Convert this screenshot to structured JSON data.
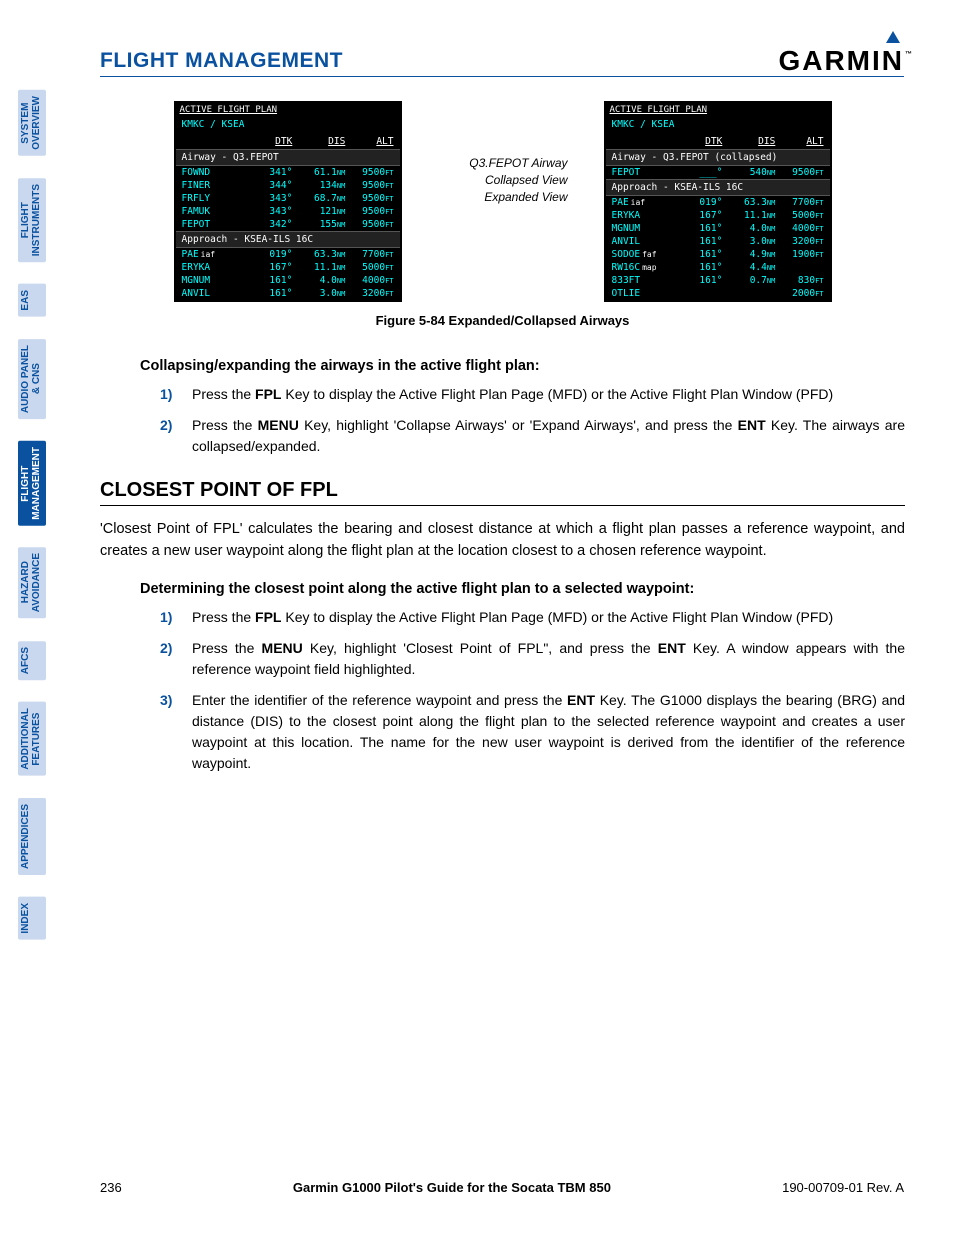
{
  "header": {
    "title": "FLIGHT MANAGEMENT",
    "logo": "GARMIN"
  },
  "sidebar": {
    "tabs": [
      {
        "label": "SYSTEM\nOVERVIEW",
        "active": false
      },
      {
        "label": "FLIGHT\nINSTRUMENTS",
        "active": false
      },
      {
        "label": "EAS",
        "active": false
      },
      {
        "label": "AUDIO PANEL\n& CNS",
        "active": false
      },
      {
        "label": "FLIGHT\nMANAGEMENT",
        "active": true
      },
      {
        "label": "HAZARD\nAVOIDANCE",
        "active": false
      },
      {
        "label": "AFCS",
        "active": false
      },
      {
        "label": "ADDITIONAL\nFEATURES",
        "active": false
      },
      {
        "label": "APPENDICES",
        "active": false
      },
      {
        "label": "INDEX",
        "active": false
      }
    ]
  },
  "figure": {
    "caption": "Figure 5-84  Expanded/Collapsed Airways",
    "center": {
      "l1": "Q3.FEPOT Airway",
      "l2": "Collapsed View",
      "l3": "Expanded View"
    },
    "left": {
      "title": "ACTIVE FLIGHT PLAN",
      "route": "KMKC / KSEA",
      "cols": [
        "DTK",
        "DIS",
        "ALT"
      ],
      "sections": [
        {
          "h": "Airway - Q3.FEPOT",
          "rows": [
            {
              "n": "FOWND",
              "dtk": "341°",
              "dis": "61.1NM",
              "alt": "9500FT"
            },
            {
              "n": "FINER",
              "dtk": "344°",
              "dis": "134NM",
              "alt": "9500FT"
            },
            {
              "n": "FRFLY",
              "dtk": "343°",
              "dis": "68.7NM",
              "alt": "9500FT"
            },
            {
              "n": "FAMUK",
              "dtk": "343°",
              "dis": "121NM",
              "alt": "9500FT"
            },
            {
              "n": "FEPOT",
              "dtk": "342°",
              "dis": "155NM",
              "alt": "9500FT"
            }
          ]
        },
        {
          "h": "Approach - KSEA-ILS 16C",
          "rows": [
            {
              "n": "PAE",
              "sub": "iaf",
              "dtk": "019°",
              "dis": "63.3NM",
              "alt": "7700FT"
            },
            {
              "n": "ERYKA",
              "dtk": "167°",
              "dis": "11.1NM",
              "alt": "5000FT"
            },
            {
              "n": "MGNUM",
              "dtk": "161°",
              "dis": "4.0NM",
              "alt": "4000FT"
            },
            {
              "n": "ANVIL",
              "dtk": "161°",
              "dis": "3.0NM",
              "alt": "3200FT"
            }
          ]
        }
      ]
    },
    "right": {
      "title": "ACTIVE FLIGHT PLAN",
      "route": "KMKC / KSEA",
      "cols": [
        "DTK",
        "DIS",
        "ALT"
      ],
      "sections": [
        {
          "h": "Airway - Q3.FEPOT (collapsed)",
          "rows": [
            {
              "n": "FEPOT",
              "dtk": "___°",
              "dis": "540NM",
              "alt": "9500FT"
            }
          ]
        },
        {
          "h": "Approach - KSEA-ILS 16C",
          "rows": [
            {
              "n": "PAE",
              "sub": "iaf",
              "dtk": "019°",
              "dis": "63.3NM",
              "alt": "7700FT"
            },
            {
              "n": "ERYKA",
              "dtk": "167°",
              "dis": "11.1NM",
              "alt": "5000FT"
            },
            {
              "n": "MGNUM",
              "dtk": "161°",
              "dis": "4.0NM",
              "alt": "4000FT"
            },
            {
              "n": "ANVIL",
              "dtk": "161°",
              "dis": "3.0NM",
              "alt": "3200FT"
            },
            {
              "n": "SODOE",
              "sub": "faf",
              "dtk": "161°",
              "dis": "4.9NM",
              "alt": "1900FT"
            },
            {
              "n": "RW16C",
              "sub": "map",
              "dtk": "161°",
              "dis": "4.4NM",
              "alt": ""
            },
            {
              "n": "833FT",
              "dtk": "161°",
              "dis": "0.7NM",
              "alt": "830FT"
            },
            {
              "n": "OTLIE",
              "dtk": "",
              "dis": "",
              "alt": "2000FT"
            }
          ]
        }
      ]
    }
  },
  "proc1": {
    "head": "Collapsing/expanding the airways in the active flight plan:",
    "steps": [
      "Press the <b>FPL</b> Key to display the Active Flight Plan Page (MFD) or the Active Flight Plan Window (PFD)",
      "Press the <b>MENU</b> Key, highlight 'Collapse Airways' or 'Expand Airways', and press the <b>ENT</b> Key.  The airways are collapsed/expanded."
    ]
  },
  "section": {
    "title": "CLOSEST POINT OF FPL",
    "body": "'Closest Point of FPL' calculates the bearing and closest distance at which a flight plan passes a reference waypoint, and creates a new user waypoint along the flight plan at the location closest to a chosen reference waypoint."
  },
  "proc2": {
    "head": "Determining the closest point along the active flight plan to a selected waypoint:",
    "steps": [
      "Press the <b>FPL</b> Key to display the Active Flight Plan Page (MFD) or the Active Flight Plan Window (PFD)",
      "Press the <b>MENU</b> Key, highlight 'Closest Point of FPL\", and press the <b>ENT</b> Key.  A window appears with the reference waypoint field highlighted.",
      "Enter the identifier of the reference waypoint and press the <b>ENT</b> Key.  The G1000 displays the bearing (BRG) and distance (DIS) to the closest point along the flight plan to the selected reference waypoint and creates a user waypoint at this location.  The name for the new user waypoint is derived from the identifier of the reference waypoint."
    ]
  },
  "footer": {
    "page": "236",
    "mid": "Garmin G1000 Pilot's Guide for the Socata TBM 850",
    "rev": "190-00709-01  Rev. A"
  }
}
